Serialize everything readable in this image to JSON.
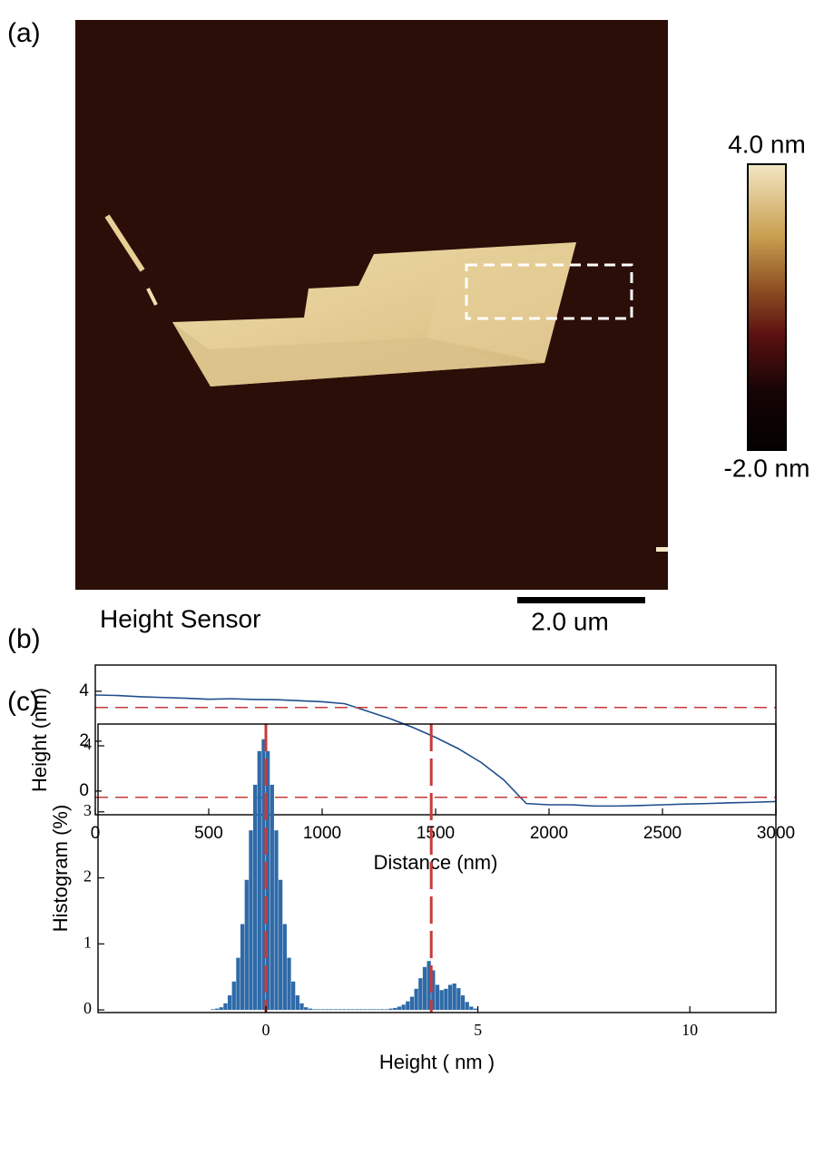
{
  "image": {
    "panel_label": "(a)",
    "caption": "Height Sensor",
    "scale_bar": "2.0 um",
    "colorbar_max": "4.0 nm",
    "colorbar_min": "-2.0 nm"
  },
  "chart_data": [
    {
      "type": "line",
      "panel_label": "(b)",
      "xlabel": "Distance (nm)",
      "ylabel": "Height (nm)",
      "x": [
        0,
        100,
        200,
        300,
        400,
        500,
        600,
        700,
        800,
        900,
        1000,
        1100,
        1200,
        1300,
        1400,
        1500,
        1600,
        1700,
        1800,
        1900,
        2000,
        2100,
        2200,
        2300,
        2400,
        2500,
        2600,
        2700,
        2800,
        2900,
        3000
      ],
      "series": [
        {
          "color": "#1f4e8c",
          "values": [
            3.85,
            3.83,
            3.78,
            3.75,
            3.72,
            3.68,
            3.7,
            3.67,
            3.66,
            3.62,
            3.58,
            3.5,
            3.2,
            2.9,
            2.55,
            2.15,
            1.7,
            1.15,
            0.45,
            -0.5,
            -0.55,
            -0.55,
            -0.6,
            -0.6,
            -0.58,
            -0.55,
            -0.52,
            -0.5,
            -0.47,
            -0.45,
            -0.42
          ]
        }
      ],
      "hlines": [
        3.35,
        -0.25
      ],
      "ref_color": "#c83a3a",
      "xlim": [
        0,
        3000
      ],
      "xticks": [
        0,
        500,
        1000,
        1500,
        2000,
        2500,
        3000
      ],
      "ylim": [
        -0.95,
        5.05
      ],
      "yticks": [
        0,
        2,
        4
      ]
    },
    {
      "type": "histogram",
      "panel_label": "(c)",
      "xlabel": "Height ( nm )",
      "ylabel": "Histogram (%)",
      "color": "#2e6aa8",
      "bins": [
        -1.4,
        -1.3,
        -1.2,
        -1.1,
        -1.0,
        -0.9,
        -0.8,
        -0.7,
        -0.6,
        -0.5,
        -0.4,
        -0.3,
        -0.2,
        -0.1,
        0.0,
        0.1,
        0.2,
        0.3,
        0.4,
        0.5,
        0.6,
        0.7,
        0.8,
        0.9,
        1.0,
        1.1,
        1.2,
        1.3,
        1.4,
        1.5,
        1.6,
        1.7,
        1.8,
        1.9,
        2.0,
        2.1,
        2.2,
        2.3,
        2.4,
        2.5,
        2.6,
        2.7,
        2.8,
        2.9,
        3.0,
        3.1,
        3.2,
        3.3,
        3.4,
        3.5,
        3.6,
        3.7,
        3.8,
        3.9,
        4.0,
        4.1,
        4.2,
        4.3,
        4.4,
        4.5,
        4.6,
        4.7,
        4.8,
        4.9,
        5.0
      ],
      "values": [
        0.0,
        0.01,
        0.02,
        0.04,
        0.1,
        0.22,
        0.43,
        0.79,
        1.3,
        1.97,
        2.72,
        3.41,
        3.92,
        4.1,
        3.92,
        3.41,
        2.72,
        1.97,
        1.3,
        0.79,
        0.43,
        0.22,
        0.1,
        0.04,
        0.02,
        0.01,
        0.01,
        0.01,
        0.01,
        0.01,
        0.01,
        0.01,
        0.01,
        0.01,
        0.01,
        0.01,
        0.01,
        0.01,
        0.01,
        0.01,
        0.01,
        0.01,
        0.01,
        0.02,
        0.03,
        0.05,
        0.08,
        0.13,
        0.2,
        0.32,
        0.48,
        0.65,
        0.74,
        0.6,
        0.38,
        0.3,
        0.32,
        0.38,
        0.4,
        0.33,
        0.22,
        0.12,
        0.05,
        0.02
      ],
      "vlines": [
        0,
        3.9
      ],
      "ref_color": "#c83a3a",
      "xlim": [
        -3.96,
        12.03
      ],
      "xticks": [
        0,
        5,
        10
      ],
      "ylim": [
        -0.04,
        4.33
      ],
      "yticks": [
        0,
        1,
        2,
        3,
        4
      ]
    }
  ]
}
